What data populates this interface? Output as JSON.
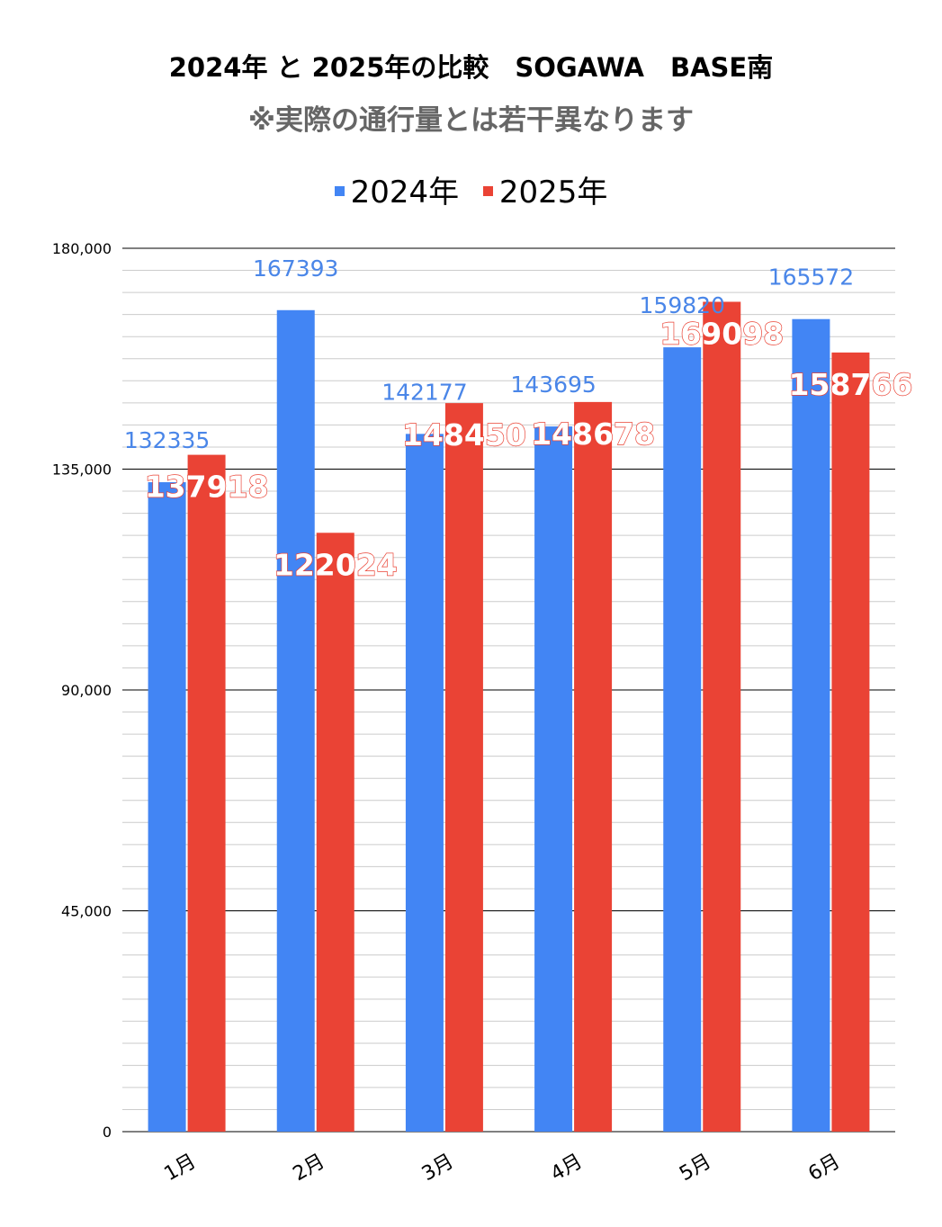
{
  "chart_data": {
    "type": "bar",
    "title": "2024年 と 2025年の比較　SOGAWA　BASE南",
    "subtitle": "※実際の通行量とは若干異なります",
    "xlabel": "",
    "ylabel": "",
    "categories": [
      "1月",
      "2月",
      "3月",
      "4月",
      "5月",
      "6月"
    ],
    "series": [
      {
        "name": "2024年",
        "color": "#4285f4",
        "label_color": "#4a86e8",
        "values": [
          132335,
          167393,
          142177,
          143695,
          159820,
          165572
        ]
      },
      {
        "name": "2025年",
        "color": "#ea4335",
        "label_color": "#ea4335",
        "values": [
          137918,
          122024,
          148450,
          148678,
          169098,
          158766
        ]
      }
    ],
    "value_labels": [
      [
        "132335",
        "167393",
        "142177",
        "143695",
        "159820",
        "165572"
      ],
      [
        "137918",
        "122024",
        "148450",
        "148678",
        "169098",
        "158766"
      ]
    ],
    "ylim": [
      0,
      180000
    ],
    "yticks": [
      0,
      45000,
      90000,
      135000,
      180000
    ],
    "ytick_labels": [
      "0",
      "45,000",
      "90,000",
      "135,000",
      "180,000"
    ],
    "minor_gridlines": true,
    "legend_position": "top-center"
  }
}
